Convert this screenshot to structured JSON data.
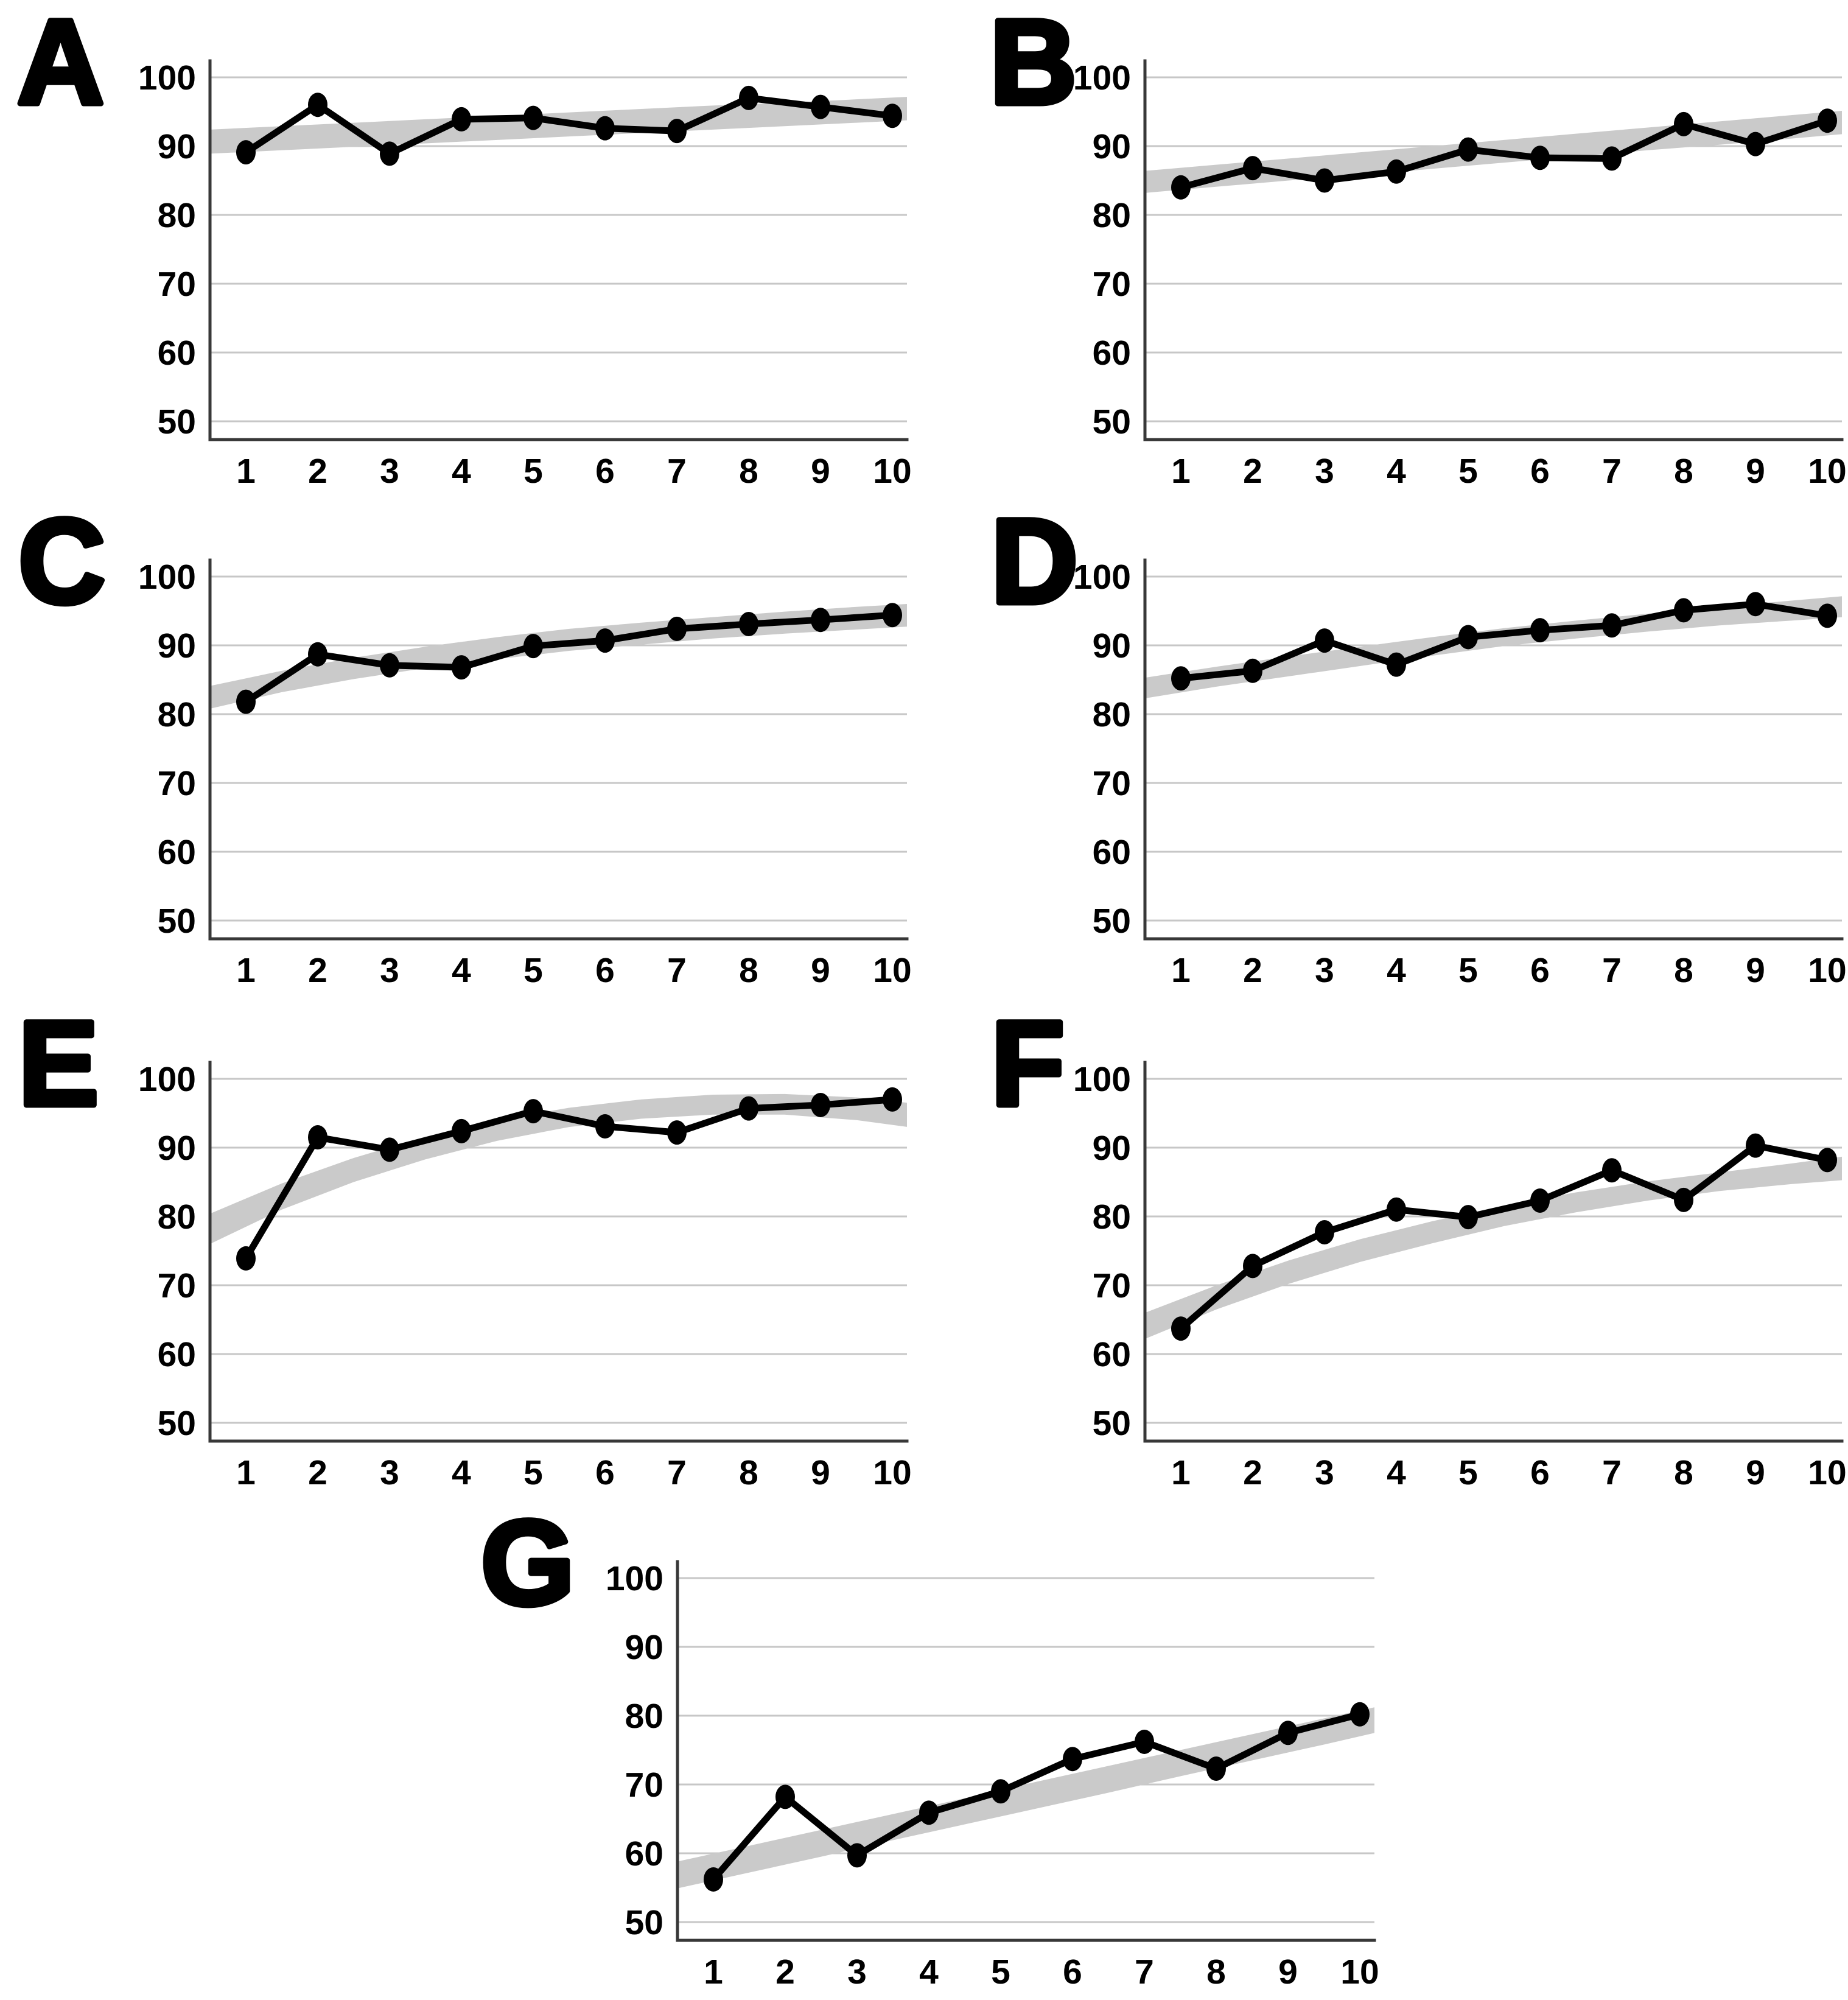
{
  "figure": {
    "description": "Seven-panel figure of line charts with observed values (black line with markers) and gray trend bands",
    "panel_labels": [
      "A",
      "B",
      "C",
      "D",
      "E",
      "F",
      "G"
    ]
  },
  "style": {
    "background": "#ffffff",
    "line_color": "#000000",
    "marker_color": "#000000",
    "band_color": "#cacaca",
    "grid_color": "#c7c7c7",
    "axis_color": "#383838",
    "label_color": "#000000"
  },
  "chart_data": [
    {
      "type": "line",
      "label": "A",
      "x": [
        1,
        2,
        3,
        4,
        5,
        6,
        7,
        8,
        9,
        10
      ],
      "values": [
        89.1,
        96.0,
        88.9,
        93.9,
        94.1,
        92.6,
        92.2,
        97.0,
        95.7,
        94.4
      ],
      "trend_band": {
        "x": [
          0.5,
          1.5,
          2.5,
          3.5,
          4.5,
          5.5,
          6.5,
          7.5,
          8.5,
          9.5,
          10.5
        ],
        "lower": [
          88.9,
          89.4,
          89.9,
          90.4,
          90.9,
          91.4,
          91.9,
          92.4,
          92.9,
          93.4,
          93.9
        ],
        "upper": [
          92.4,
          92.9,
          93.4,
          93.9,
          94.4,
          94.9,
          95.4,
          95.9,
          96.3,
          96.8,
          97.3
        ]
      },
      "x_ticks": [
        1,
        2,
        3,
        4,
        5,
        6,
        7,
        8,
        9,
        10
      ],
      "y_ticks": [
        50,
        60,
        70,
        80,
        90,
        100
      ],
      "xlim": [
        0.5,
        10.5
      ],
      "ylim": [
        47,
        102
      ],
      "grid": "horizontal",
      "legend": "none",
      "title": ""
    },
    {
      "type": "line",
      "label": "B",
      "x": [
        1,
        2,
        3,
        4,
        5,
        6,
        7,
        8,
        9,
        10
      ],
      "values": [
        84.0,
        86.8,
        85.0,
        86.3,
        89.5,
        88.3,
        88.2,
        93.2,
        90.3,
        93.7
      ],
      "trend_band": {
        "x": [
          0.5,
          1.5,
          2.5,
          3.5,
          4.5,
          5.5,
          6.5,
          7.5,
          8.5,
          9.5,
          10.5
        ],
        "lower": [
          83.2,
          84.1,
          85.0,
          85.8,
          86.7,
          87.6,
          88.5,
          89.4,
          90.2,
          91.1,
          92.0
        ],
        "upper": [
          86.4,
          87.3,
          88.2,
          89.1,
          90.0,
          90.9,
          91.8,
          92.7,
          93.6,
          94.5,
          95.4
        ]
      },
      "x_ticks": [
        1,
        2,
        3,
        4,
        5,
        6,
        7,
        8,
        9,
        10
      ],
      "y_ticks": [
        50,
        60,
        70,
        80,
        90,
        100
      ],
      "xlim": [
        0.5,
        10.5
      ],
      "ylim": [
        47,
        102
      ],
      "grid": "horizontal",
      "legend": "none",
      "title": ""
    },
    {
      "type": "line",
      "label": "C",
      "x": [
        1,
        2,
        3,
        4,
        5,
        6,
        7,
        8,
        9,
        10
      ],
      "values": [
        81.8,
        88.7,
        87.1,
        86.8,
        89.9,
        90.7,
        92.4,
        93.1,
        93.7,
        94.4
      ],
      "trend_band": {
        "x": [
          0.5,
          1.5,
          2.5,
          3.5,
          4.5,
          5.5,
          6.5,
          7.5,
          8.5,
          9.5,
          10.5
        ],
        "lower": [
          80.8,
          83.2,
          85.1,
          86.7,
          88.0,
          89.2,
          90.1,
          91.0,
          91.7,
          92.3,
          92.9
        ],
        "upper": [
          84.1,
          86.3,
          88.2,
          89.8,
          91.2,
          92.4,
          93.3,
          94.1,
          94.9,
          95.6,
          96.2
        ]
      },
      "x_ticks": [
        1,
        2,
        3,
        4,
        5,
        6,
        7,
        8,
        9,
        10
      ],
      "y_ticks": [
        50,
        60,
        70,
        80,
        90,
        100
      ],
      "xlim": [
        0.5,
        10.5
      ],
      "ylim": [
        47,
        102
      ],
      "grid": "horizontal",
      "legend": "none",
      "title": ""
    },
    {
      "type": "line",
      "label": "D",
      "x": [
        1,
        2,
        3,
        4,
        5,
        6,
        7,
        8,
        9,
        10
      ],
      "values": [
        85.2,
        86.3,
        90.7,
        87.2,
        91.2,
        92.2,
        92.9,
        95.1,
        96.0,
        94.3
      ],
      "trend_band": {
        "x": [
          0.5,
          1.5,
          2.5,
          3.5,
          4.5,
          5.5,
          6.5,
          7.5,
          8.5,
          9.5,
          10.5
        ],
        "lower": [
          82.3,
          84.0,
          85.5,
          87.0,
          88.5,
          89.9,
          91.0,
          92.0,
          92.9,
          93.6,
          94.3
        ],
        "upper": [
          85.3,
          86.9,
          88.4,
          89.8,
          91.2,
          92.5,
          93.6,
          94.6,
          95.6,
          96.5,
          97.4
        ]
      },
      "x_ticks": [
        1,
        2,
        3,
        4,
        5,
        6,
        7,
        8,
        9,
        10
      ],
      "y_ticks": [
        50,
        60,
        70,
        80,
        90,
        100
      ],
      "xlim": [
        0.5,
        10.5
      ],
      "ylim": [
        47,
        102
      ],
      "grid": "horizontal",
      "legend": "none",
      "title": ""
    },
    {
      "type": "line",
      "label": "E",
      "x": [
        1,
        2,
        3,
        4,
        5,
        6,
        7,
        8,
        9,
        10
      ],
      "values": [
        73.9,
        91.5,
        89.7,
        92.4,
        95.3,
        93.1,
        92.2,
        95.7,
        96.2,
        97.0
      ],
      "trend_band": {
        "x": [
          0.5,
          1.5,
          2.5,
          3.5,
          4.5,
          5.5,
          6.5,
          7.5,
          8.5,
          9.5,
          10.5
        ],
        "lower": [
          76.0,
          81.0,
          85.0,
          88.3,
          91.0,
          93.0,
          94.2,
          94.8,
          94.8,
          94.0,
          92.6
        ],
        "upper": [
          80.4,
          84.8,
          88.5,
          91.6,
          94.0,
          95.8,
          97.0,
          97.7,
          97.8,
          97.3,
          96.2
        ]
      },
      "x_ticks": [
        1,
        2,
        3,
        4,
        5,
        6,
        7,
        8,
        9,
        10
      ],
      "y_ticks": [
        50,
        60,
        70,
        80,
        90,
        100
      ],
      "xlim": [
        0.5,
        10.5
      ],
      "ylim": [
        47,
        102
      ],
      "grid": "horizontal",
      "legend": "none",
      "title": ""
    },
    {
      "type": "line",
      "label": "F",
      "x": [
        1,
        2,
        3,
        4,
        5,
        6,
        7,
        8,
        9,
        10
      ],
      "values": [
        63.7,
        72.8,
        77.7,
        81.0,
        79.9,
        82.3,
        86.7,
        82.4,
        90.3,
        88.2
      ],
      "trend_band": {
        "x": [
          0.5,
          1.5,
          2.5,
          3.5,
          4.5,
          5.5,
          6.5,
          7.5,
          8.5,
          9.5,
          10.5
        ],
        "lower": [
          62.2,
          66.5,
          70.2,
          73.4,
          76.1,
          78.6,
          80.6,
          82.3,
          83.7,
          84.7,
          85.5
        ],
        "upper": [
          66.0,
          70.0,
          73.6,
          76.7,
          79.3,
          81.6,
          83.5,
          85.1,
          86.4,
          87.7,
          89.1
        ]
      },
      "x_ticks": [
        1,
        2,
        3,
        4,
        5,
        6,
        7,
        8,
        9,
        10
      ],
      "y_ticks": [
        50,
        60,
        70,
        80,
        90,
        100
      ],
      "xlim": [
        0.5,
        10.5
      ],
      "ylim": [
        47,
        102
      ],
      "grid": "horizontal",
      "legend": "none",
      "title": ""
    },
    {
      "type": "line",
      "label": "G",
      "x": [
        1,
        2,
        3,
        4,
        5,
        6,
        7,
        8,
        9,
        10
      ],
      "values": [
        56.2,
        68.2,
        59.7,
        65.9,
        69.0,
        73.7,
        76.2,
        72.3,
        77.5,
        80.2
      ],
      "trend_band": {
        "x": [
          0.5,
          1.5,
          2.5,
          3.5,
          4.5,
          5.5,
          6.5,
          7.5,
          8.5,
          9.5,
          10.5
        ],
        "lower": [
          54.9,
          57.2,
          59.5,
          61.9,
          64.2,
          66.5,
          68.8,
          71.2,
          73.5,
          75.8,
          78.2
        ],
        "upper": [
          58.8,
          61.1,
          63.4,
          65.7,
          68.0,
          70.4,
          72.7,
          75.0,
          77.3,
          79.6,
          81.9
        ]
      },
      "x_ticks": [
        1,
        2,
        3,
        4,
        5,
        6,
        7,
        8,
        9,
        10
      ],
      "y_ticks": [
        50,
        60,
        70,
        80,
        90,
        100
      ],
      "xlim": [
        0.5,
        10.5
      ],
      "ylim": [
        47,
        102
      ],
      "grid": "horizontal",
      "legend": "none",
      "title": ""
    }
  ]
}
